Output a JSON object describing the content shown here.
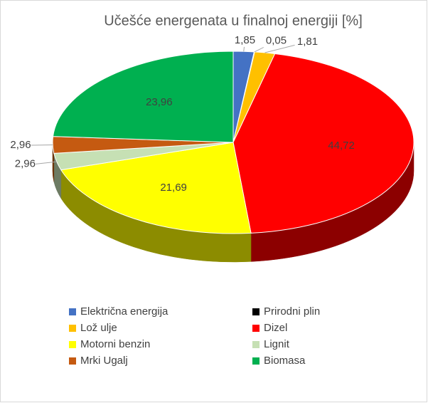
{
  "chart_data": {
    "type": "pie3d",
    "title": "Učešće energenata u finalnoj energiji [%]",
    "categories": [
      "Električna energija",
      "Prirodni plin",
      "Lož ulje",
      "Dizel",
      "Motorni benzin",
      "Lignit",
      "Mrki Ugalj",
      "Biomasa"
    ],
    "values": [
      1.85,
      0.05,
      1.81,
      44.72,
      21.69,
      2.96,
      2.96,
      23.96
    ],
    "value_labels": [
      "1,85",
      "0,05",
      "1,81",
      "44,72",
      "21,69",
      "2,96",
      "2,96",
      "23,96"
    ],
    "colors": [
      "#4472c4",
      "#000000",
      "#ffc000",
      "#ff0000",
      "#ffff00",
      "#c6e0b4",
      "#c55a11",
      "#00b050"
    ],
    "legend": "bottom"
  }
}
